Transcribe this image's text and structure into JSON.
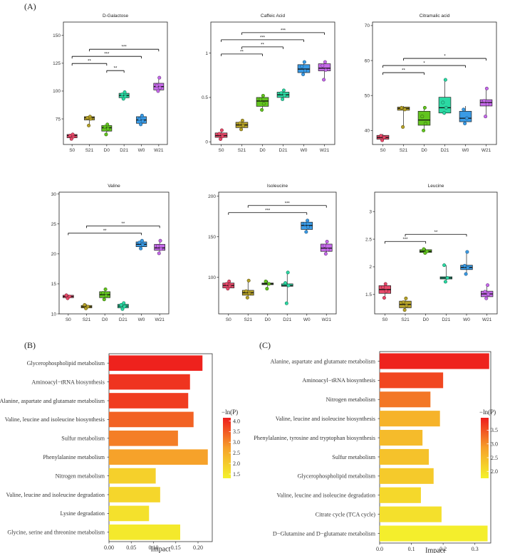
{
  "figure": {
    "panel_labels": [
      "(A)",
      "(B)",
      "(C)"
    ]
  },
  "colors": {
    "S0": "#e8496a",
    "S21": "#b5a128",
    "D0": "#62c41f",
    "D21": "#2bd9a3",
    "W0": "#3a9be6",
    "W21": "#c569e9",
    "sig_line": "#000000",
    "gradient_low": "#f4f22c",
    "gradient_mid": "#f6a12a",
    "gradient_high": "#ee1d1d"
  },
  "chart_data": [
    {
      "type": "box",
      "title": "D-Galactose",
      "categories": [
        "S0",
        "S21",
        "D0",
        "D21",
        "W0",
        "W21"
      ],
      "ylim": [
        52,
        162
      ],
      "yticks": [
        75,
        100,
        125,
        150
      ],
      "boxes": [
        {
          "q1": 58,
          "median": 60,
          "q3": 61,
          "wmin": 57,
          "wmax": 62,
          "points": [
            57,
            59,
            60,
            61
          ]
        },
        {
          "q1": 74,
          "median": 76,
          "q3": 77,
          "wmin": 69,
          "wmax": 78,
          "points": [
            69,
            75,
            76,
            77
          ]
        },
        {
          "q1": 64,
          "median": 67,
          "q3": 69,
          "wmin": 61,
          "wmax": 71,
          "points": [
            61,
            66,
            68,
            70
          ]
        },
        {
          "q1": 94,
          "median": 96,
          "q3": 98,
          "wmin": 92,
          "wmax": 100,
          "points": [
            93,
            95,
            97,
            99
          ]
        },
        {
          "q1": 71,
          "median": 74,
          "q3": 77,
          "wmin": 70,
          "wmax": 79,
          "points": [
            70,
            73,
            75,
            78
          ]
        },
        {
          "q1": 101,
          "median": 104,
          "q3": 107,
          "wmin": 100,
          "wmax": 112,
          "points": [
            100,
            103,
            105,
            112
          ]
        }
      ],
      "significance": [
        {
          "from": "S0",
          "to": "D0",
          "label": "**"
        },
        {
          "from": "D0",
          "to": "D21",
          "label": "**"
        },
        {
          "from": "S0",
          "to": "W0",
          "label": "***"
        },
        {
          "from": "S21",
          "to": "W21",
          "label": "***"
        }
      ]
    },
    {
      "type": "box",
      "title": "Caffeic Acid",
      "categories": [
        "S0",
        "S21",
        "D0",
        "D21",
        "W0",
        "W21"
      ],
      "ylim": [
        -0.03,
        1.35
      ],
      "yticks": [
        0.0,
        0.5,
        1.0
      ],
      "boxes": [
        {
          "q1": 0.05,
          "median": 0.07,
          "q3": 0.1,
          "wmin": 0.03,
          "wmax": 0.13,
          "points": [
            0.03,
            0.06,
            0.09,
            0.13
          ]
        },
        {
          "q1": 0.16,
          "median": 0.19,
          "q3": 0.22,
          "wmin": 0.13,
          "wmax": 0.25,
          "points": [
            0.14,
            0.18,
            0.21,
            0.24
          ]
        },
        {
          "q1": 0.4,
          "median": 0.46,
          "q3": 0.5,
          "wmin": 0.34,
          "wmax": 0.53,
          "points": [
            0.36,
            0.43,
            0.48,
            0.52
          ]
        },
        {
          "q1": 0.5,
          "median": 0.53,
          "q3": 0.56,
          "wmin": 0.47,
          "wmax": 0.59,
          "points": [
            0.48,
            0.52,
            0.55,
            0.58
          ]
        },
        {
          "q1": 0.78,
          "median": 0.82,
          "q3": 0.87,
          "wmin": 0.75,
          "wmax": 0.91,
          "points": [
            0.76,
            0.8,
            0.85,
            0.9
          ]
        },
        {
          "q1": 0.8,
          "median": 0.83,
          "q3": 0.88,
          "wmin": 0.69,
          "wmax": 0.91,
          "points": [
            0.7,
            0.81,
            0.86,
            0.9
          ]
        }
      ],
      "significance": [
        {
          "from": "S0",
          "to": "D0",
          "label": "**"
        },
        {
          "from": "S21",
          "to": "D21",
          "label": "**"
        },
        {
          "from": "S0",
          "to": "W0",
          "label": "***"
        },
        {
          "from": "S21",
          "to": "W21",
          "label": "***"
        }
      ]
    },
    {
      "type": "box",
      "title": "Citramalic acid",
      "categories": [
        "S0",
        "S21",
        "D0",
        "D21",
        "W0",
        "W21"
      ],
      "ylim": [
        36,
        71
      ],
      "yticks": [
        40,
        50,
        60,
        70
      ],
      "boxes": [
        {
          "q1": 37.5,
          "median": 38,
          "q3": 38.6,
          "wmin": 37,
          "wmax": 39,
          "points": [
            37.2,
            38,
            38.5
          ]
        },
        {
          "q1": 45.8,
          "median": 46.3,
          "q3": 46.7,
          "wmin": 41,
          "wmax": 47,
          "points": [
            41,
            46,
            46.5
          ]
        },
        {
          "q1": 41.5,
          "median": 43,
          "q3": 45.5,
          "wmin": 40,
          "wmax": 47,
          "points": [
            40,
            42,
            44,
            46.5
          ]
        },
        {
          "q1": 45,
          "median": 46.5,
          "q3": 49.5,
          "wmin": 44.5,
          "wmax": 54.5,
          "points": [
            45,
            46.5,
            48,
            54.5
          ]
        },
        {
          "q1": 42.5,
          "median": 43.5,
          "q3": 45.5,
          "wmin": 42,
          "wmax": 47,
          "points": [
            42,
            43.5,
            46
          ]
        },
        {
          "q1": 47,
          "median": 48,
          "q3": 48.8,
          "wmin": 44,
          "wmax": 52,
          "points": [
            44,
            47.5,
            48.5,
            52
          ]
        }
      ],
      "significance": [
        {
          "from": "S0",
          "to": "D0",
          "label": "**"
        },
        {
          "from": "S0",
          "to": "W0",
          "label": "*"
        },
        {
          "from": "S21",
          "to": "W21",
          "label": "*"
        }
      ]
    },
    {
      "type": "box",
      "title": "Valine",
      "categories": [
        "S0",
        "S21",
        "D0",
        "D21",
        "W0",
        "W21"
      ],
      "ylim": [
        10,
        30.3
      ],
      "yticks": [
        10,
        15,
        20,
        25,
        30
      ],
      "boxes": [
        {
          "q1": 12.7,
          "median": 12.9,
          "q3": 13.1,
          "wmin": 12.5,
          "wmax": 13.2,
          "points": [
            12.6,
            12.9,
            13.1
          ]
        },
        {
          "q1": 11.0,
          "median": 11.2,
          "q3": 11.4,
          "wmin": 10.8,
          "wmax": 11.6,
          "points": [
            10.9,
            11.2,
            11.5
          ]
        },
        {
          "q1": 12.7,
          "median": 13.2,
          "q3": 13.7,
          "wmin": 12.3,
          "wmax": 14.2,
          "points": [
            12.4,
            13.0,
            13.5,
            14.1
          ]
        },
        {
          "q1": 11.0,
          "median": 11.3,
          "q3": 11.6,
          "wmin": 10.7,
          "wmax": 11.9,
          "points": [
            10.8,
            11.2,
            11.5,
            11.8
          ]
        },
        {
          "q1": 21.2,
          "median": 21.6,
          "q3": 22.0,
          "wmin": 20.8,
          "wmax": 22.3,
          "points": [
            20.9,
            21.5,
            21.9,
            22.2
          ]
        },
        {
          "q1": 20.6,
          "median": 21.0,
          "q3": 21.6,
          "wmin": 20.0,
          "wmax": 22.3,
          "points": [
            20.1,
            20.8,
            21.3,
            22.2
          ]
        }
      ],
      "significance": [
        {
          "from": "S0",
          "to": "W0",
          "label": "**"
        },
        {
          "from": "S21",
          "to": "W21",
          "label": "**"
        }
      ]
    },
    {
      "type": "box",
      "title": "Isoleucine",
      "categories": [
        "S0",
        "S21",
        "D0",
        "D21",
        "W0",
        "W21"
      ],
      "ylim": [
        55,
        205
      ],
      "yticks": [
        100,
        150,
        200
      ],
      "boxes": [
        {
          "q1": 87,
          "median": 90,
          "q3": 93,
          "wmin": 85,
          "wmax": 96,
          "points": [
            86,
            89,
            92,
            95
          ]
        },
        {
          "q1": 78,
          "median": 81,
          "q3": 84,
          "wmin": 74,
          "wmax": 97,
          "points": [
            75,
            80,
            83,
            96
          ]
        },
        {
          "q1": 91,
          "median": 92,
          "q3": 93,
          "wmin": 86,
          "wmax": 96,
          "points": [
            86,
            92,
            95
          ]
        },
        {
          "q1": 89,
          "median": 90,
          "q3": 92,
          "wmin": 68,
          "wmax": 106,
          "points": [
            68,
            90,
            93,
            106
          ]
        },
        {
          "q1": 159,
          "median": 164,
          "q3": 168,
          "wmin": 155,
          "wmax": 171,
          "points": [
            156,
            162,
            166,
            170
          ]
        },
        {
          "q1": 132,
          "median": 136,
          "q3": 141,
          "wmin": 128,
          "wmax": 145,
          "points": [
            129,
            134,
            139,
            144
          ]
        }
      ],
      "significance": [
        {
          "from": "S0",
          "to": "W0",
          "label": "***"
        },
        {
          "from": "S21",
          "to": "W21",
          "label": "***"
        }
      ]
    },
    {
      "type": "box",
      "title": "Leucine",
      "categories": [
        "S0",
        "S21",
        "D0",
        "D21",
        "W0",
        "W21"
      ],
      "ylim": [
        1.15,
        3.35
      ],
      "yticks": [
        1.5,
        2.0,
        2.5,
        3.0
      ],
      "boxes": [
        {
          "q1": 1.52,
          "median": 1.59,
          "q3": 1.66,
          "wmin": 1.43,
          "wmax": 1.7,
          "points": [
            1.44,
            1.56,
            1.63,
            1.69
          ]
        },
        {
          "q1": 1.26,
          "median": 1.32,
          "q3": 1.38,
          "wmin": 1.21,
          "wmax": 1.44,
          "points": [
            1.22,
            1.3,
            1.36,
            1.43
          ]
        },
        {
          "q1": 2.26,
          "median": 2.28,
          "q3": 2.31,
          "wmin": 2.24,
          "wmax": 2.33,
          "points": [
            2.25,
            2.28,
            2.32
          ]
        },
        {
          "q1": 1.78,
          "median": 1.8,
          "q3": 1.82,
          "wmin": 1.72,
          "wmax": 2.03,
          "points": [
            1.73,
            1.8,
            2.03
          ]
        },
        {
          "q1": 1.95,
          "median": 1.99,
          "q3": 2.03,
          "wmin": 1.86,
          "wmax": 2.27,
          "points": [
            1.87,
            1.98,
            2.02,
            2.27
          ]
        },
        {
          "q1": 1.46,
          "median": 1.51,
          "q3": 1.56,
          "wmin": 1.42,
          "wmax": 1.68,
          "points": [
            1.43,
            1.5,
            1.55,
            1.67
          ]
        }
      ],
      "significance": [
        {
          "from": "S0",
          "to": "D0",
          "label": "***"
        },
        {
          "from": "S21",
          "to": "W0",
          "label": "**"
        }
      ]
    },
    {
      "type": "bar",
      "orientation": "horizontal",
      "xlabel": "Impact",
      "xlim": [
        0,
        0.232
      ],
      "xticks": [
        0.0,
        0.05,
        0.1,
        0.15,
        0.2
      ],
      "xtick_labels": [
        "0.00",
        "0.05",
        "0.10",
        "0.15",
        "0.20"
      ],
      "categories": [
        "Glycerophospholipid metabolism",
        "Aminoacyl−tRNA biosynthesis",
        "Alanine, aspartate and glutamate metabolism",
        "Valine, leucine and isoleucine biosynthesis",
        "Sulfur metabolism",
        "Phenylalanine metabolism",
        "Nitrogen metabolism",
        "Valine, leucine and isoleucine degradation",
        "Lysine degradation",
        "Glycine, serine and threonine metabolism"
      ],
      "values": [
        0.21,
        0.182,
        0.178,
        0.19,
        0.155,
        0.222,
        0.105,
        0.115,
        0.09,
        0.16
      ],
      "color_values": [
        4.1,
        3.9,
        3.8,
        3.4,
        3.1,
        2.7,
        1.9,
        1.8,
        1.6,
        1.45
      ],
      "color_range": [
        1.3,
        4.15
      ],
      "colorbar": {
        "title": "−ln(P)",
        "ticks": [
          1.5,
          2.0,
          2.5,
          3.0,
          3.5,
          4.0
        ],
        "tick_labels": [
          "1.5",
          "2.0",
          "2.5",
          "3.0",
          "3.5",
          "4.0"
        ]
      }
    },
    {
      "type": "bar",
      "orientation": "horizontal",
      "xlabel": "Impact",
      "xlim": [
        0,
        0.35
      ],
      "xticks": [
        0.0,
        0.1,
        0.2,
        0.3
      ],
      "xtick_labels": [
        "0.0",
        "0.1",
        "0.2",
        "0.3"
      ],
      "categories": [
        "Alanine, aspartate and glutamate metabolism",
        "Aminoacyl−tRNA biosynthesis",
        "Nitrogen metabolism",
        "Valine, leucine and isoleucine biosynthesis",
        "Phenylalanine, tyrosine and tryptophan biosynthesis",
        "Sulfur metabolism",
        "Glycerophospholipid metabolism",
        "Valine, leucine and isoleucine degradation",
        "Citrate cycle (TCA cycle)",
        "D−Glutamine and D−glutamate metabolism"
      ],
      "values": [
        0.345,
        0.2,
        0.16,
        0.19,
        0.135,
        0.155,
        0.17,
        0.13,
        0.195,
        0.34
      ],
      "color_values": [
        3.9,
        3.6,
        3.2,
        2.6,
        2.5,
        2.4,
        2.3,
        2.1,
        2.0,
        1.8
      ],
      "color_range": [
        1.75,
        3.95
      ],
      "colorbar": {
        "title": "−ln(P)",
        "ticks": [
          2.0,
          2.5,
          3.0,
          3.5
        ],
        "tick_labels": [
          "2.0",
          "2.5",
          "3.0",
          "3.5"
        ]
      }
    }
  ]
}
